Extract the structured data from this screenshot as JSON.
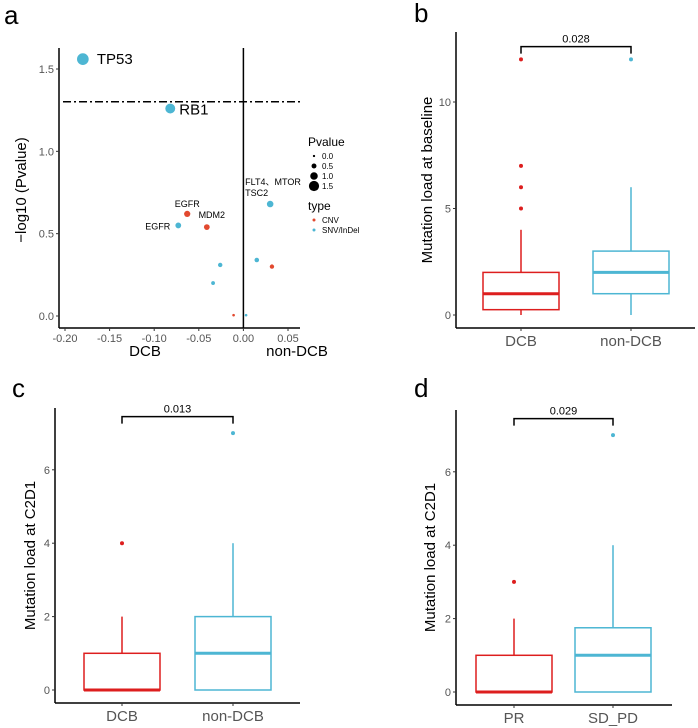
{
  "colors": {
    "CNV": "#E2492F",
    "SNV": "#4DB6D3",
    "red_box": "#DD1E1E",
    "blue_box": "#4DB6D3",
    "axis": "#000000",
    "tick": "#555555"
  },
  "chart_data": [
    {
      "panel": "a",
      "type": "scatter",
      "ylabel": "−log10 (Pvalue)",
      "xlabel_left": "DCB",
      "xlabel_right": "non-DCB",
      "xlim": [
        -0.21,
        0.063
      ],
      "ylim": [
        -0.07,
        1.63
      ],
      "xticks": [
        -0.2,
        -0.15,
        -0.1,
        -0.05,
        0.0,
        0.05
      ],
      "xtick_labels": [
        "-0.20",
        "-0.15",
        "-0.10",
        "-0.05",
        "0.00",
        "0.05"
      ],
      "yticks": [
        0.0,
        0.5,
        1.0,
        1.5
      ],
      "ytick_labels": [
        "0.0",
        "0.5",
        "1.0",
        "1.5"
      ],
      "threshold_y": 1.301,
      "vline_x": 0,
      "points": [
        {
          "x": -0.18,
          "y": 1.56,
          "type": "SNV/InDel",
          "label": "TP53",
          "big": true
        },
        {
          "x": -0.082,
          "y": 1.26,
          "type": "SNV/InDel",
          "label": "RB1",
          "big": true
        },
        {
          "x": -0.063,
          "y": 0.62,
          "type": "CNV",
          "label": "EGFR"
        },
        {
          "x": -0.041,
          "y": 0.54,
          "type": "CNV",
          "label": "MDM2"
        },
        {
          "x": -0.073,
          "y": 0.55,
          "type": "SNV/InDel",
          "label": "EGFR"
        },
        {
          "x": 0.03,
          "y": 0.68,
          "type": "SNV/InDel",
          "label": "FLT4、MTOR\nTSC2"
        },
        {
          "x": -0.026,
          "y": 0.31,
          "type": "SNV/InDel",
          "label": ""
        },
        {
          "x": -0.034,
          "y": 0.2,
          "type": "SNV/InDel",
          "label": ""
        },
        {
          "x": 0.015,
          "y": 0.34,
          "type": "SNV/InDel",
          "label": ""
        },
        {
          "x": 0.032,
          "y": 0.3,
          "type": "CNV",
          "label": ""
        },
        {
          "x": -0.011,
          "y": 0.005,
          "type": "CNV",
          "label": ""
        },
        {
          "x": 0.003,
          "y": 0.005,
          "type": "SNV/InDel",
          "label": ""
        }
      ],
      "legend": {
        "size_title": "Pvalue",
        "size_entries": [
          "0.0",
          "0.5",
          "1.0",
          "1.5"
        ],
        "size_values": [
          0.0,
          0.5,
          1.0,
          1.5
        ],
        "color_title": "type",
        "color_entries": [
          "CNV",
          "SNV/InDel"
        ],
        "placement": "right"
      }
    },
    {
      "panel": "b",
      "type": "box",
      "ylabel": "Mutation load at baseline",
      "ylim": [
        -1.2,
        13.9
      ],
      "yticks": [
        0,
        5,
        10
      ],
      "ytick_labels": [
        "0",
        "5",
        "10"
      ],
      "categories": [
        "DCB",
        "non-DCB"
      ],
      "boxes": [
        {
          "q1": 0.25,
          "median": 1,
          "q3": 2,
          "lo": 0,
          "hi": 4,
          "outliers": [
            5,
            6,
            7,
            12
          ]
        },
        {
          "q1": 1,
          "median": 2,
          "q3": 3,
          "lo": 0,
          "hi": 6,
          "outliers": [
            12
          ]
        }
      ],
      "p_value": "0.028",
      "bracket_y": 12.6
    },
    {
      "panel": "c",
      "type": "box",
      "ylabel": "Mutation load at C2D1",
      "ylim": [
        -0.35,
        7.7
      ],
      "yticks": [
        0,
        2,
        4,
        6
      ],
      "ytick_labels": [
        "0",
        "2",
        "4",
        "6"
      ],
      "categories": [
        "DCB",
        "non-DCB"
      ],
      "boxes": [
        {
          "q1": 0,
          "median": 0,
          "q3": 1,
          "lo": 0,
          "hi": 2,
          "outliers": [
            4
          ]
        },
        {
          "q1": 0,
          "median": 1,
          "q3": 2,
          "lo": 0,
          "hi": 4,
          "outliers": [
            7
          ]
        }
      ],
      "p_value": "0.013",
      "bracket_y": 7.45
    },
    {
      "panel": "d",
      "type": "box",
      "ylabel": "Mutation load at C2D1",
      "ylim": [
        -0.35,
        7.7
      ],
      "yticks": [
        0,
        2,
        4,
        6
      ],
      "ytick_labels": [
        "0",
        "2",
        "4",
        "6"
      ],
      "categories": [
        "PR",
        "SD_PD"
      ],
      "boxes": [
        {
          "q1": 0,
          "median": 0,
          "q3": 1,
          "lo": 0,
          "hi": 2,
          "outliers": [
            3
          ]
        },
        {
          "q1": 0,
          "median": 1,
          "q3": 1.75,
          "lo": 0,
          "hi": 4,
          "outliers": [
            7
          ]
        }
      ],
      "p_value": "0.029",
      "bracket_y": 7.45
    }
  ]
}
